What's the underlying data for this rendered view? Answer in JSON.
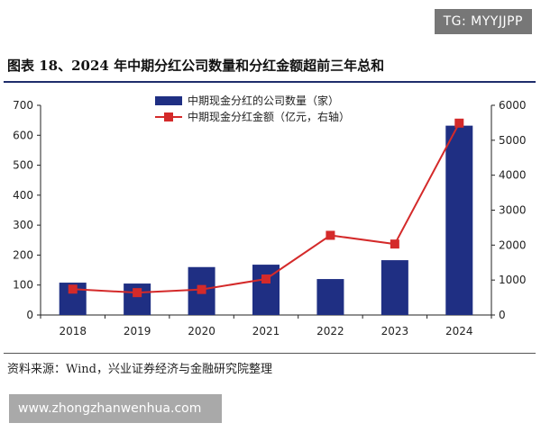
{
  "watermark": {
    "tg": "TG: MYYJJPP",
    "site": "www.zhongzhanwenhua.com"
  },
  "title": "图表 18、2024 年中期分红公司数量和分红金额超前三年总和",
  "source": "资料来源：Wind，兴业证券经济与金融研究院整理",
  "colors": {
    "bar": "#1f2f83",
    "line": "#d42a2a",
    "axis": "#222222"
  },
  "chart_data": {
    "type": "bar",
    "categories": [
      "2018",
      "2019",
      "2020",
      "2021",
      "2022",
      "2023",
      "2024"
    ],
    "series": [
      {
        "name": "中期现金分红的公司数量（家）",
        "type": "bar",
        "axis": "left",
        "values": [
          108,
          105,
          160,
          168,
          120,
          183,
          632
        ]
      },
      {
        "name": "中期现金分红金额（亿元，右轴）",
        "type": "line",
        "axis": "right",
        "values": [
          740,
          640,
          730,
          1030,
          2280,
          2030,
          5490
        ]
      }
    ],
    "y_left": {
      "lim": [
        0,
        700
      ],
      "ticks": [
        0,
        100,
        200,
        300,
        400,
        500,
        600,
        700
      ]
    },
    "y_right": {
      "lim": [
        0,
        6000
      ],
      "ticks": [
        0,
        1000,
        2000,
        3000,
        4000,
        5000,
        6000
      ]
    },
    "legend_position": "top-center",
    "grid": false
  }
}
